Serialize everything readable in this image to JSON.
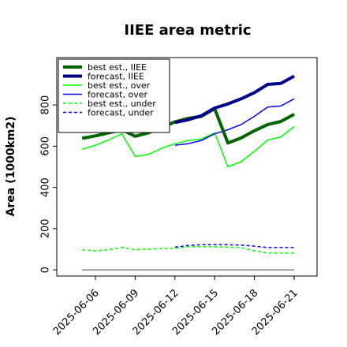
{
  "chart_data": {
    "type": "line",
    "title": "IIEE area metric",
    "ylabel": "Area (1000km2)",
    "xlabel": "",
    "ylim": [
      -30,
      1030
    ],
    "y_ticks": [
      0,
      200,
      400,
      600,
      800
    ],
    "x_ticks": [
      "2025-06-06",
      "2025-06-09",
      "2025-06-12",
      "2025-06-15",
      "2025-06-18",
      "2025-06-21"
    ],
    "x_tick_colors": [
      "#000000",
      "#000000",
      "#008000",
      "#000000",
      "#000000",
      "#000000"
    ],
    "legend_position": "upper left",
    "series": [
      {
        "name": "best est., IIEE",
        "color": "#006400",
        "dash": "solid",
        "width": 4,
        "x": [
          "2025-06-05",
          "2025-06-06",
          "2025-06-07",
          "2025-06-08",
          "2025-06-09",
          "2025-06-10",
          "2025-06-11",
          "2025-06-12",
          "2025-06-13",
          "2025-06-14",
          "2025-06-15",
          "2025-06-16",
          "2025-06-17",
          "2025-06-18",
          "2025-06-19",
          "2025-06-20",
          "2025-06-21"
        ],
        "y": [
          638,
          650,
          665,
          680,
          648,
          665,
          690,
          718,
          735,
          745,
          782,
          615,
          640,
          675,
          705,
          720,
          755
        ]
      },
      {
        "name": "forecast, IIEE",
        "color": "#00008b",
        "dash": "solid",
        "width": 4,
        "x": [
          "2025-06-12",
          "2025-06-13",
          "2025-06-14",
          "2025-06-15",
          "2025-06-16",
          "2025-06-17",
          "2025-06-18",
          "2025-06-19",
          "2025-06-20",
          "2025-06-21"
        ],
        "y": [
          715,
          728,
          748,
          785,
          805,
          830,
          860,
          900,
          905,
          940
        ]
      },
      {
        "name": "best est., over",
        "color": "#00ff00",
        "dash": "solid",
        "width": 1.5,
        "x": [
          "2025-06-05",
          "2025-06-06",
          "2025-06-07",
          "2025-06-08",
          "2025-06-09",
          "2025-06-10",
          "2025-06-11",
          "2025-06-12",
          "2025-06-13",
          "2025-06-14",
          "2025-06-15",
          "2025-06-16",
          "2025-06-17",
          "2025-06-18",
          "2025-06-19",
          "2025-06-20",
          "2025-06-21"
        ],
        "y": [
          585,
          605,
          630,
          660,
          550,
          560,
          590,
          612,
          628,
          635,
          665,
          500,
          525,
          575,
          630,
          645,
          695
        ]
      },
      {
        "name": "forecast, over",
        "color": "#0000ff",
        "dash": "solid",
        "width": 1.5,
        "x": [
          "2025-06-12",
          "2025-06-13",
          "2025-06-14",
          "2025-06-15",
          "2025-06-16",
          "2025-06-17",
          "2025-06-18",
          "2025-06-19",
          "2025-06-20",
          "2025-06-21"
        ],
        "y": [
          605,
          612,
          628,
          660,
          680,
          705,
          745,
          790,
          795,
          830
        ]
      },
      {
        "name": "best est., under",
        "color": "#00ff00",
        "dash": "dashed",
        "width": 1.5,
        "x": [
          "2025-06-05",
          "2025-06-06",
          "2025-06-07",
          "2025-06-08",
          "2025-06-09",
          "2025-06-10",
          "2025-06-11",
          "2025-06-12",
          "2025-06-13",
          "2025-06-14",
          "2025-06-15",
          "2025-06-16",
          "2025-06-17",
          "2025-06-18",
          "2025-06-19",
          "2025-06-20",
          "2025-06-21"
        ],
        "y": [
          98,
          92,
          98,
          108,
          98,
          100,
          103,
          105,
          112,
          112,
          112,
          110,
          108,
          92,
          82,
          82,
          82
        ]
      },
      {
        "name": "forecast, under",
        "color": "#0000ff",
        "dash": "dashed",
        "width": 1.5,
        "x": [
          "2025-06-12",
          "2025-06-13",
          "2025-06-14",
          "2025-06-15",
          "2025-06-16",
          "2025-06-17",
          "2025-06-18",
          "2025-06-19",
          "2025-06-20",
          "2025-06-21"
        ],
        "y": [
          110,
          118,
          122,
          122,
          122,
          120,
          115,
          108,
          108,
          108
        ]
      },
      {
        "name": "",
        "color": "#808080",
        "dash": "solid",
        "width": 1.5,
        "x": [
          "2025-06-05",
          "2025-06-21"
        ],
        "y": [
          0,
          0
        ]
      }
    ]
  }
}
